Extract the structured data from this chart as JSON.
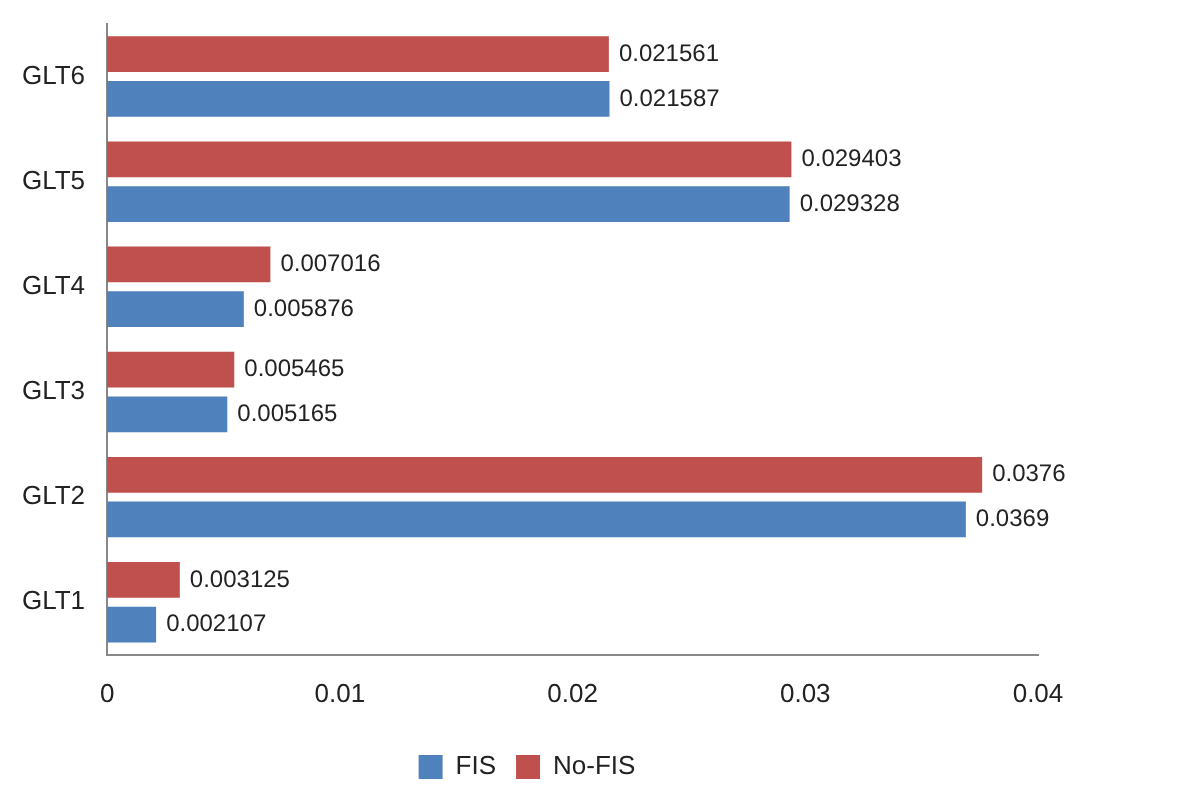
{
  "chart_data": {
    "type": "bar",
    "orientation": "horizontal",
    "categories": [
      "GLT6",
      "GLT5",
      "GLT4",
      "GLT3",
      "GLT2",
      "GLT1"
    ],
    "series": [
      {
        "name": "No-FIS",
        "color": "#c0504d",
        "values": [
          0.021561,
          0.029403,
          0.007016,
          0.005465,
          0.0376,
          0.003125
        ]
      },
      {
        "name": "FIS",
        "color": "#4f81bd",
        "values": [
          0.021587,
          0.029328,
          0.005876,
          0.005165,
          0.0369,
          0.002107
        ]
      }
    ],
    "xlim": [
      0,
      0.04
    ],
    "xticks": [
      0,
      0.01,
      0.02,
      0.03,
      0.04
    ],
    "grid": false,
    "legend": "bottom",
    "data_labels": true
  }
}
